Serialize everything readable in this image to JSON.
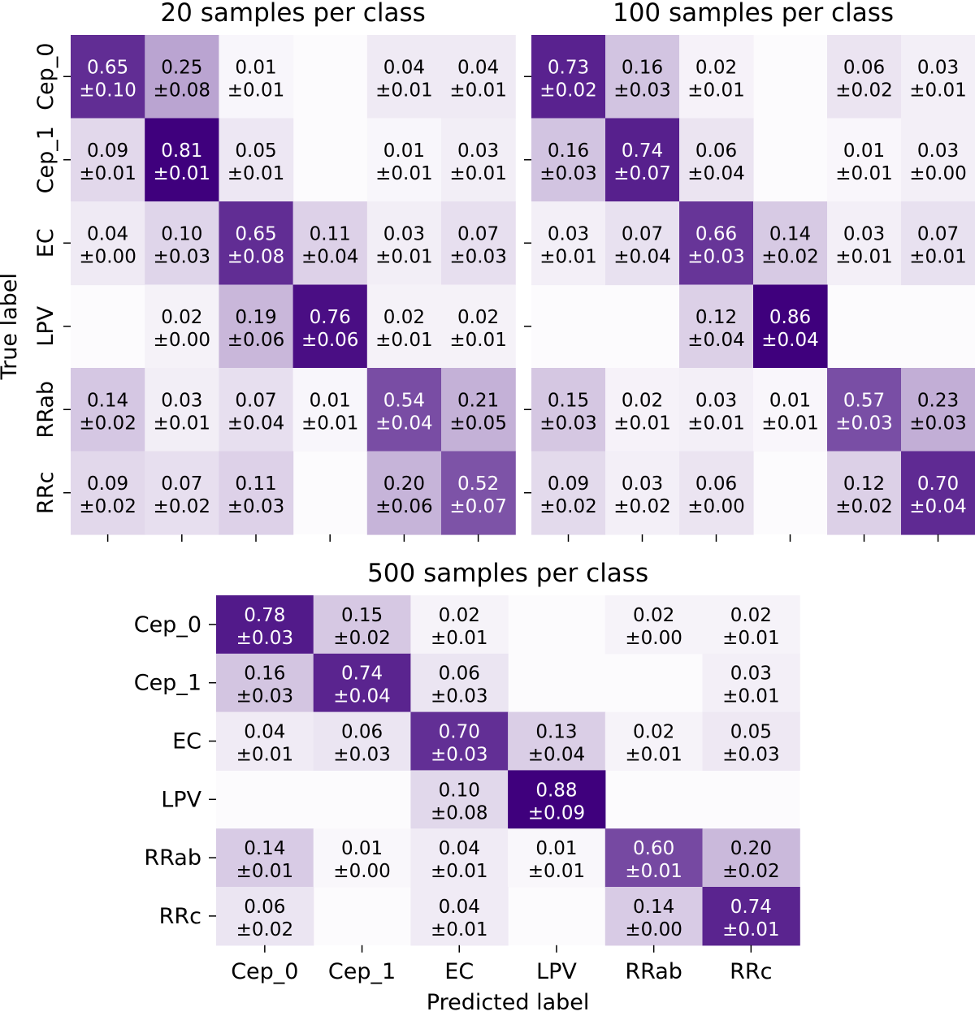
{
  "chart_data": [
    {
      "type": "heatmap",
      "title": "20 samples per class",
      "xlabel": "",
      "ylabel": "True label",
      "rows": [
        "Cep_0",
        "Cep_1",
        "EC",
        "LPV",
        "RRab",
        "RRc"
      ],
      "columns": [
        "",
        "",
        "",
        "",
        "",
        ""
      ],
      "values": [
        [
          0.65,
          0.25,
          0.01,
          null,
          0.04,
          0.04
        ],
        [
          0.09,
          0.81,
          0.05,
          null,
          0.01,
          0.03
        ],
        [
          0.04,
          0.1,
          0.65,
          0.11,
          0.03,
          0.07
        ],
        [
          null,
          0.02,
          0.19,
          0.76,
          0.02,
          0.02
        ],
        [
          0.14,
          0.03,
          0.07,
          0.01,
          0.54,
          0.21
        ],
        [
          0.09,
          0.07,
          0.11,
          null,
          0.2,
          0.52
        ]
      ],
      "errors": [
        [
          0.1,
          0.08,
          0.01,
          null,
          0.01,
          0.01
        ],
        [
          0.01,
          0.01,
          0.01,
          null,
          0.01,
          0.01
        ],
        [
          0.0,
          0.03,
          0.08,
          0.04,
          0.01,
          0.03
        ],
        [
          null,
          0.0,
          0.06,
          0.06,
          0.01,
          0.01
        ],
        [
          0.02,
          0.01,
          0.04,
          0.01,
          0.04,
          0.05
        ],
        [
          0.02,
          0.02,
          0.03,
          null,
          0.06,
          0.07
        ]
      ],
      "colormap": [
        "#fcfbfd",
        "#3f007d"
      ]
    },
    {
      "type": "heatmap",
      "title": "100 samples per class",
      "xlabel": "",
      "ylabel": "",
      "rows": [
        "",
        "",
        "",
        "",
        "",
        ""
      ],
      "columns": [
        "",
        "",
        "",
        "",
        "",
        ""
      ],
      "values": [
        [
          0.73,
          0.16,
          0.02,
          null,
          0.06,
          0.03
        ],
        [
          0.16,
          0.74,
          0.06,
          null,
          0.01,
          0.03
        ],
        [
          0.03,
          0.07,
          0.66,
          0.14,
          0.03,
          0.07
        ],
        [
          null,
          null,
          0.12,
          0.86,
          null,
          null
        ],
        [
          0.15,
          0.02,
          0.03,
          0.01,
          0.57,
          0.23
        ],
        [
          0.09,
          0.03,
          0.06,
          null,
          0.12,
          0.7
        ]
      ],
      "errors": [
        [
          0.02,
          0.03,
          0.01,
          null,
          0.02,
          0.01
        ],
        [
          0.03,
          0.07,
          0.04,
          null,
          0.01,
          0.0
        ],
        [
          0.01,
          0.04,
          0.03,
          0.02,
          0.01,
          0.01
        ],
        [
          null,
          null,
          0.04,
          0.04,
          null,
          null
        ],
        [
          0.03,
          0.01,
          0.01,
          0.01,
          0.03,
          0.03
        ],
        [
          0.02,
          0.02,
          0.0,
          null,
          0.02,
          0.04
        ]
      ],
      "colormap": [
        "#fcfbfd",
        "#3f007d"
      ]
    },
    {
      "type": "heatmap",
      "title": "500 samples per class",
      "xlabel": "Predicted label",
      "ylabel": "",
      "rows": [
        "Cep_0",
        "Cep_1",
        "EC",
        "LPV",
        "RRab",
        "RRc"
      ],
      "columns": [
        "Cep_0",
        "Cep_1",
        "EC",
        "LPV",
        "RRab",
        "RRc"
      ],
      "values": [
        [
          0.78,
          0.15,
          0.02,
          null,
          0.02,
          0.02
        ],
        [
          0.16,
          0.74,
          0.06,
          null,
          null,
          0.03
        ],
        [
          0.04,
          0.06,
          0.7,
          0.13,
          0.02,
          0.05
        ],
        [
          null,
          null,
          0.1,
          0.88,
          null,
          null
        ],
        [
          0.14,
          0.01,
          0.04,
          0.01,
          0.6,
          0.2
        ],
        [
          0.06,
          null,
          0.04,
          null,
          0.14,
          0.74
        ]
      ],
      "errors": [
        [
          0.03,
          0.02,
          0.01,
          null,
          0.0,
          0.01
        ],
        [
          0.03,
          0.04,
          0.03,
          null,
          null,
          0.01
        ],
        [
          0.01,
          0.03,
          0.03,
          0.04,
          0.01,
          0.03
        ],
        [
          null,
          null,
          0.08,
          0.09,
          null,
          null
        ],
        [
          0.01,
          0.0,
          0.01,
          0.01,
          0.01,
          0.02
        ],
        [
          0.02,
          null,
          0.01,
          null,
          0.0,
          0.01
        ]
      ],
      "colormap": [
        "#fcfbfd",
        "#3f007d"
      ]
    }
  ]
}
